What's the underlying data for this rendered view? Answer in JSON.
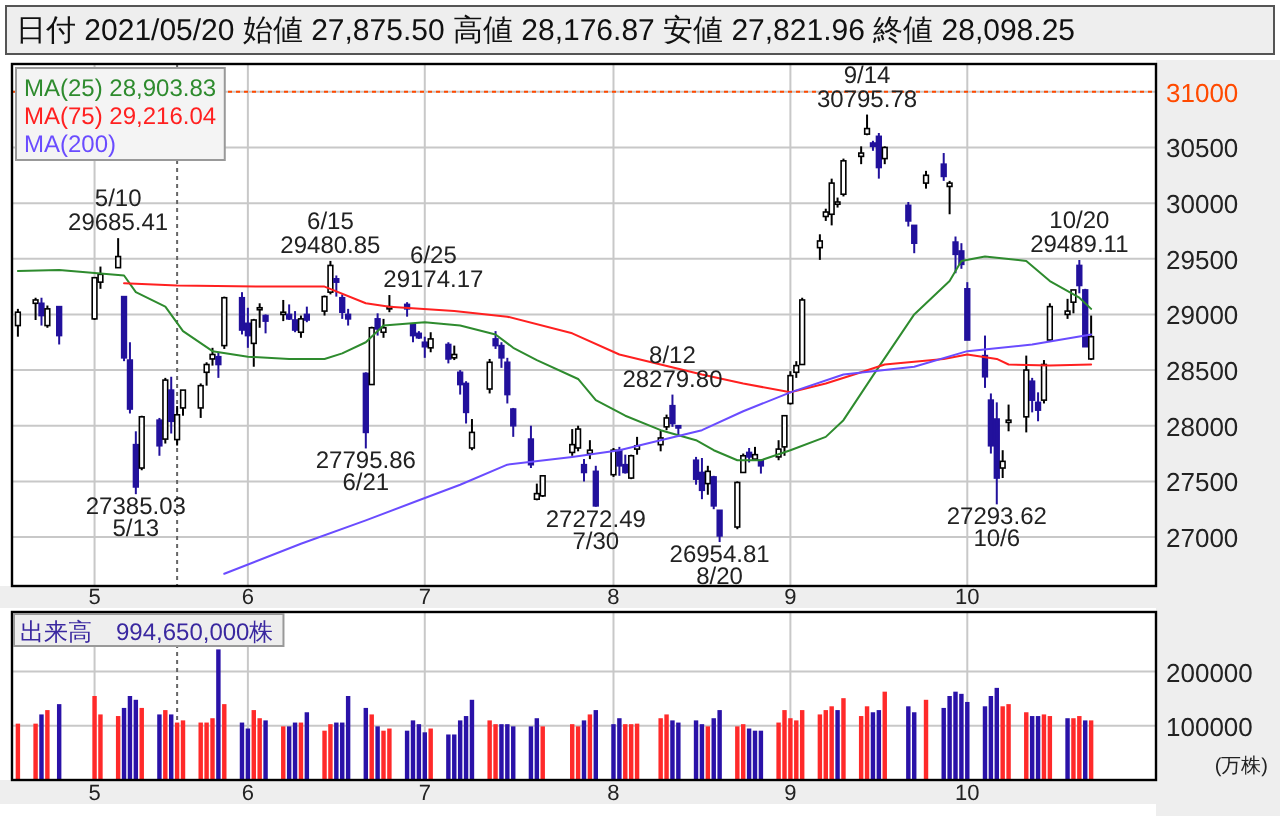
{
  "chart_data": [
    {
      "type": "candlestick",
      "title": "日付 2021/05/20 始値 27,875.50 高値 28,176.87 安値 27,821.96 終値 28,098.25",
      "x": [
        "2021-04-23",
        "2021-04-26",
        "2021-04-27",
        "2021-04-28",
        "2021-04-30",
        "2021-05-06",
        "2021-05-07",
        "2021-05-10",
        "2021-05-11",
        "2021-05-12",
        "2021-05-13",
        "2021-05-14",
        "2021-05-17",
        "2021-05-18",
        "2021-05-19",
        "2021-05-20",
        "2021-05-21",
        "2021-05-24",
        "2021-05-25",
        "2021-05-26",
        "2021-05-27",
        "2021-05-28",
        "2021-05-31",
        "2021-06-01",
        "2021-06-02",
        "2021-06-03",
        "2021-06-04",
        "2021-06-07",
        "2021-06-08",
        "2021-06-09",
        "2021-06-10",
        "2021-06-11",
        "2021-06-14",
        "2021-06-15",
        "2021-06-16",
        "2021-06-17",
        "2021-06-18",
        "2021-06-21",
        "2021-06-22",
        "2021-06-23",
        "2021-06-24",
        "2021-06-25",
        "2021-06-28",
        "2021-06-29",
        "2021-06-30",
        "2021-07-01",
        "2021-07-02",
        "2021-07-05",
        "2021-07-06",
        "2021-07-07",
        "2021-07-08",
        "2021-07-09",
        "2021-07-12",
        "2021-07-13",
        "2021-07-14",
        "2021-07-15",
        "2021-07-16",
        "2021-07-19",
        "2021-07-20",
        "2021-07-21",
        "2021-07-26",
        "2021-07-27",
        "2021-07-28",
        "2021-07-29",
        "2021-07-30",
        "2021-08-02",
        "2021-08-03",
        "2021-08-04",
        "2021-08-05",
        "2021-08-06",
        "2021-08-10",
        "2021-08-11",
        "2021-08-12",
        "2021-08-13",
        "2021-08-16",
        "2021-08-17",
        "2021-08-18",
        "2021-08-19",
        "2021-08-20",
        "2021-08-23",
        "2021-08-24",
        "2021-08-25",
        "2021-08-26",
        "2021-08-27",
        "2021-08-30",
        "2021-08-31",
        "2021-09-01",
        "2021-09-02",
        "2021-09-03",
        "2021-09-06",
        "2021-09-07",
        "2021-09-08",
        "2021-09-09",
        "2021-09-10",
        "2021-09-13",
        "2021-09-14",
        "2021-09-15",
        "2021-09-16",
        "2021-09-17",
        "2021-09-21",
        "2021-09-22",
        "2021-09-24",
        "2021-09-27",
        "2021-09-28",
        "2021-09-29",
        "2021-09-30",
        "2021-10-01",
        "2021-10-04",
        "2021-10-05",
        "2021-10-06",
        "2021-10-07",
        "2021-10-08",
        "2021-10-11",
        "2021-10-12",
        "2021-10-13",
        "2021-10-14",
        "2021-10-15",
        "2021-10-18",
        "2021-10-19",
        "2021-10-20",
        "2021-10-21",
        "2021-10-22"
      ],
      "ohlc": [
        [
          28900,
          29050,
          28800,
          29020
        ],
        [
          29100,
          29150,
          28950,
          29130
        ],
        [
          29100,
          29150,
          28900,
          28990
        ],
        [
          28900,
          29080,
          28880,
          29050
        ],
        [
          29070,
          29070,
          28730,
          28810
        ],
        [
          28960,
          29330,
          28950,
          29330
        ],
        [
          29290,
          29430,
          29230,
          29360
        ],
        [
          29420,
          29685.41,
          29420,
          29520
        ],
        [
          29160,
          29160,
          28580,
          28610
        ],
        [
          28590,
          28750,
          28110,
          28150
        ],
        [
          27830,
          27950,
          27385.03,
          27450
        ],
        [
          27620,
          28090,
          27600,
          28080
        ],
        [
          28050,
          28070,
          27730,
          27820
        ],
        [
          27880,
          28430,
          27840,
          28410
        ],
        [
          28320,
          28440,
          27930,
          28040
        ],
        [
          27875.5,
          28176.87,
          27821.96,
          28098.25
        ],
        [
          28160,
          28320,
          28090,
          28320
        ],
        [
          28160,
          28380,
          28070,
          28360
        ],
        [
          28480,
          28570,
          28360,
          28550
        ],
        [
          28600,
          28700,
          28540,
          28640
        ],
        [
          28620,
          28660,
          28430,
          28550
        ],
        [
          28720,
          29160,
          28690,
          29150
        ],
        [
          29150,
          29200,
          28820,
          28860
        ],
        [
          28920,
          29060,
          28700,
          28810
        ],
        [
          28740,
          28960,
          28530,
          28950
        ],
        [
          29050,
          29100,
          28880,
          29060
        ],
        [
          28990,
          29000,
          28830,
          28940
        ],
        [
          29000,
          29130,
          28940,
          29020
        ],
        [
          29000,
          29090,
          28950,
          28960
        ],
        [
          28950,
          29030,
          28840,
          28860
        ],
        [
          28840,
          28990,
          28790,
          28960
        ],
        [
          29000,
          29070,
          28930,
          28950
        ],
        [
          29030,
          29170,
          28990,
          29160
        ],
        [
          29200,
          29480.85,
          29180,
          29440
        ],
        [
          29320,
          29350,
          29160,
          29290
        ],
        [
          29150,
          29180,
          28960,
          29020
        ],
        [
          29000,
          29050,
          28900,
          28960
        ],
        [
          28470,
          28480,
          27795.86,
          27940
        ],
        [
          28370,
          28890,
          28370,
          28880
        ],
        [
          28960,
          29010,
          28810,
          28870
        ],
        [
          28840,
          28960,
          28790,
          28880
        ],
        [
          29050,
          29174.17,
          29020,
          29070
        ],
        [
          29090,
          29110,
          28980,
          29050
        ],
        [
          28910,
          28920,
          28750,
          28810
        ],
        [
          28830,
          28850,
          28780,
          28790
        ],
        [
          28750,
          28800,
          28610,
          28710
        ],
        [
          28700,
          28840,
          28660,
          28780
        ],
        [
          28730,
          28750,
          28560,
          28600
        ],
        [
          28610,
          28720,
          28590,
          28640
        ],
        [
          28480,
          28500,
          28280,
          28370
        ],
        [
          28380,
          28400,
          28020,
          28120
        ],
        [
          27800,
          28060,
          27780,
          27940
        ],
        [
          28330,
          28600,
          28290,
          28570
        ],
        [
          28780,
          28850,
          28690,
          28720
        ],
        [
          28720,
          28750,
          28520,
          28610
        ],
        [
          28570,
          28610,
          28200,
          28280
        ],
        [
          28150,
          28160,
          27900,
          28000
        ],
        [
          27880,
          28000,
          27620,
          27650
        ],
        [
          27340,
          27480,
          27330,
          27390
        ],
        [
          27370,
          27550,
          27360,
          27550
        ],
        [
          27760,
          27970,
          27730,
          27830
        ],
        [
          27800,
          28000,
          27770,
          27970
        ],
        [
          27650,
          27700,
          27500,
          27580
        ],
        [
          27750,
          27870,
          27700,
          27780
        ],
        [
          27590,
          27640,
          27272.49,
          27280
        ],
        [
          27560,
          27800,
          27540,
          27780
        ],
        [
          27780,
          27810,
          27550,
          27640
        ],
        [
          27650,
          27740,
          27570,
          27580
        ],
        [
          27530,
          27740,
          27520,
          27730
        ],
        [
          27790,
          27900,
          27740,
          27820
        ],
        [
          27830,
          27960,
          27770,
          27890
        ],
        [
          27990,
          28100,
          27960,
          28070
        ],
        [
          28180,
          28279.8,
          27990,
          28020
        ],
        [
          28000,
          28000,
          27900,
          27980
        ],
        [
          27690,
          27720,
          27470,
          27520
        ],
        [
          27580,
          27710,
          27340,
          27420
        ],
        [
          27480,
          27640,
          27380,
          27590
        ],
        [
          27540,
          27550,
          27250,
          27280
        ],
        [
          27240,
          27240,
          26954.81,
          27010
        ],
        [
          27090,
          27500,
          27070,
          27490
        ],
        [
          27580,
          27750,
          27580,
          27730
        ],
        [
          27760,
          27800,
          27670,
          27720
        ],
        [
          27700,
          27810,
          27690,
          27740
        ],
        [
          27690,
          27690,
          27570,
          27640
        ],
        [
          27720,
          27870,
          27690,
          27790
        ],
        [
          27810,
          28090,
          27730,
          28090
        ],
        [
          28200,
          28490,
          28190,
          28450
        ],
        [
          28480,
          28580,
          28430,
          28540
        ],
        [
          28550,
          29150,
          28550,
          29130
        ],
        [
          29600,
          29720,
          29490,
          29660
        ],
        [
          29880,
          29950,
          29840,
          29920
        ],
        [
          29900,
          30220,
          29800,
          30180
        ],
        [
          29990,
          30050,
          29960,
          30010
        ],
        [
          30080,
          30400,
          30060,
          30380
        ],
        [
          30420,
          30510,
          30350,
          30450
        ],
        [
          30620,
          30795.78,
          30610,
          30670
        ],
        [
          30540,
          30560,
          30470,
          30510
        ],
        [
          30600,
          30630,
          30220,
          30320
        ],
        [
          30400,
          30510,
          30350,
          30500
        ],
        [
          29980,
          30010,
          29790,
          29840
        ],
        [
          29800,
          29800,
          29550,
          29640
        ],
        [
          30180,
          30290,
          30130,
          30250
        ],
        [
          30350,
          30450,
          30200,
          30240
        ],
        [
          30150,
          30200,
          29900,
          30180
        ],
        [
          29650,
          29700,
          29370,
          29540
        ],
        [
          29570,
          29640,
          29410,
          29450
        ],
        [
          29230,
          29290,
          28770,
          28770
        ],
        [
          28630,
          28810,
          28340,
          28440
        ],
        [
          28230,
          28290,
          27750,
          27820
        ],
        [
          28060,
          28210,
          27293.62,
          27530
        ],
        [
          27620,
          27780,
          27530,
          27680
        ],
        [
          28030,
          28190,
          27950,
          28050
        ],
        [
          28080,
          28630,
          27940,
          28500
        ],
        [
          28400,
          28430,
          28120,
          28230
        ],
        [
          28210,
          28300,
          28040,
          28140
        ],
        [
          28230,
          28590,
          28200,
          28550
        ],
        [
          28770,
          29100,
          28760,
          29070
        ],
        [
          29000,
          29140,
          28960,
          29030
        ],
        [
          29110,
          29220,
          29010,
          29220
        ],
        [
          29440,
          29489.11,
          29190,
          29260
        ],
        [
          29220,
          29230,
          28710,
          28710
        ],
        [
          28600,
          28990,
          28590,
          28800
        ]
      ],
      "series": [
        {
          "name": "MA(25)   28,903.83",
          "type": "line",
          "color": "#2e8b2e",
          "x": [
            "2021-04-23",
            "2021-04-30",
            "2021-05-11",
            "2021-05-13",
            "2021-05-18",
            "2021-05-21",
            "2021-05-26",
            "2021-06-01",
            "2021-06-08",
            "2021-06-14",
            "2021-06-17",
            "2021-06-21",
            "2021-06-24",
            "2021-07-01",
            "2021-07-07",
            "2021-07-13",
            "2021-07-16",
            "2021-07-20",
            "2021-07-27",
            "2021-07-30",
            "2021-08-04",
            "2021-08-10",
            "2021-08-16",
            "2021-08-19",
            "2021-08-23",
            "2021-08-27",
            "2021-09-01",
            "2021-09-07",
            "2021-09-10",
            "2021-09-15",
            "2021-09-22",
            "2021-09-28",
            "2021-09-30",
            "2021-10-04",
            "2021-10-06",
            "2021-10-11",
            "2021-10-15",
            "2021-10-20",
            "2021-10-22"
          ],
          "values": [
            29390,
            29400,
            29350,
            29200,
            29070,
            28850,
            28670,
            28620,
            28600,
            28600,
            28650,
            28750,
            28900,
            28930,
            28900,
            28820,
            28700,
            28590,
            28420,
            28230,
            28090,
            27960,
            27870,
            27780,
            27690,
            27690,
            27780,
            27900,
            28050,
            28450,
            29000,
            29300,
            29480,
            29520,
            29510,
            29480,
            29300,
            29150,
            29050
          ]
        },
        {
          "name": "MA(75)   29,216.04",
          "type": "line",
          "color": "#ff2020",
          "x": [
            "2021-05-11",
            "2021-05-20",
            "2021-06-03",
            "2021-06-14",
            "2021-06-21",
            "2021-06-25",
            "2021-07-06",
            "2021-07-15",
            "2021-07-26",
            "2021-08-03",
            "2021-08-10",
            "2021-08-17",
            "2021-08-24",
            "2021-09-01",
            "2021-09-07",
            "2021-09-13",
            "2021-09-17",
            "2021-09-27",
            "2021-10-01",
            "2021-10-06",
            "2021-10-08",
            "2021-10-15",
            "2021-10-22"
          ],
          "values": [
            29280,
            29260,
            29250,
            29250,
            29100,
            29070,
            29030,
            28980,
            28830,
            28640,
            28550,
            28460,
            28380,
            28300,
            28380,
            28480,
            28550,
            28600,
            28640,
            28600,
            28550,
            28540,
            28550
          ]
        },
        {
          "name": "MA(200)",
          "type": "line",
          "color": "#6a4cff",
          "x": [
            "2021-05-28",
            "2021-06-10",
            "2021-06-21",
            "2021-06-30",
            "2021-07-07",
            "2021-07-15",
            "2021-07-26",
            "2021-08-03",
            "2021-08-10",
            "2021-08-17",
            "2021-08-24",
            "2021-09-01",
            "2021-09-10",
            "2021-09-22",
            "2021-10-01",
            "2021-10-12",
            "2021-10-22"
          ],
          "values": [
            26670,
            26940,
            27150,
            27330,
            27470,
            27650,
            27720,
            27780,
            27870,
            27960,
            28130,
            28300,
            28460,
            28530,
            28670,
            28730,
            28820
          ]
        }
      ],
      "xlim": [
        "2021-04-22",
        "2021-11-02"
      ],
      "ylim": [
        26560,
        31250
      ],
      "yticks": [
        27000,
        27500,
        28000,
        28500,
        29000,
        29500,
        30000,
        30500,
        31000
      ],
      "xticks": [
        {
          "value": "2021-05-06",
          "label": "5"
        },
        {
          "value": "2021-06-01",
          "label": "6"
        },
        {
          "value": "2021-07-01",
          "label": "7"
        },
        {
          "value": "2021-08-02",
          "label": "8"
        },
        {
          "value": "2021-09-01",
          "label": "9"
        },
        {
          "value": "2021-10-01",
          "label": "10"
        }
      ],
      "grid": true,
      "legend": "top left",
      "ref_lines": [
        {
          "axis": "y",
          "value": 31000,
          "line_style": "dotted",
          "color": "#ff4a00"
        },
        {
          "axis": "x",
          "value": "2021-05-20",
          "line_style": "dotted",
          "color": "#666666"
        }
      ],
      "annotations": [
        {
          "text": "29685.41",
          "x": "2021-05-10",
          "y": 29685.41
        },
        {
          "text": "5/10",
          "x": "2021-05-10",
          "y": 29685.41
        },
        {
          "text": "27385.03",
          "x": "2021-05-13",
          "y": 27385.03
        },
        {
          "text": "5/13",
          "x": "2021-05-13",
          "y": 27385.03
        },
        {
          "text": "29480.85",
          "x": "2021-06-15",
          "y": 29480.85
        },
        {
          "text": "6/15",
          "x": "2021-06-15",
          "y": 29480.85
        },
        {
          "text": "27795.86",
          "x": "2021-06-21",
          "y": 27795.86
        },
        {
          "text": "6/21",
          "x": "2021-06-21",
          "y": 27795.86
        },
        {
          "text": "29174.17",
          "x": "2021-06-25",
          "y": 29174.17
        },
        {
          "text": "6/25",
          "x": "2021-06-25",
          "y": 29174.17
        },
        {
          "text": "27272.49",
          "x": "2021-07-30",
          "y": 27272.49
        },
        {
          "text": "7/30",
          "x": "2021-07-30",
          "y": 27272.49
        },
        {
          "text": "28279.80",
          "x": "2021-08-12",
          "y": 28279.8
        },
        {
          "text": "8/12",
          "x": "2021-08-12",
          "y": 28279.8
        },
        {
          "text": "26954.81",
          "x": "2021-08-20",
          "y": 26954.81
        },
        {
          "text": "8/20",
          "x": "2021-08-20",
          "y": 26954.81
        },
        {
          "text": "30795.78",
          "x": "2021-09-14",
          "y": 30795.78
        },
        {
          "text": "9/14",
          "x": "2021-09-14",
          "y": 30795.78
        },
        {
          "text": "27293.62",
          "x": "2021-10-06",
          "y": 27293.62
        },
        {
          "text": "10/6",
          "x": "2021-10-06",
          "y": 27293.62
        },
        {
          "text": "29489.11",
          "x": "2021-10-20",
          "y": 29489.11
        },
        {
          "text": "10/20",
          "x": "2021-10-20",
          "y": 29489.11
        }
      ]
    },
    {
      "type": "bar",
      "title": "出来高　994,650,000株",
      "ylabel": "(万株)",
      "x": [
        "2021-04-23",
        "2021-04-26",
        "2021-04-27",
        "2021-04-28",
        "2021-04-30",
        "2021-05-06",
        "2021-05-07",
        "2021-05-10",
        "2021-05-11",
        "2021-05-12",
        "2021-05-13",
        "2021-05-14",
        "2021-05-17",
        "2021-05-18",
        "2021-05-19",
        "2021-05-20",
        "2021-05-21",
        "2021-05-24",
        "2021-05-25",
        "2021-05-26",
        "2021-05-27",
        "2021-05-28",
        "2021-05-31",
        "2021-06-01",
        "2021-06-02",
        "2021-06-03",
        "2021-06-04",
        "2021-06-07",
        "2021-06-08",
        "2021-06-09",
        "2021-06-10",
        "2021-06-11",
        "2021-06-14",
        "2021-06-15",
        "2021-06-16",
        "2021-06-17",
        "2021-06-18",
        "2021-06-21",
        "2021-06-22",
        "2021-06-23",
        "2021-06-24",
        "2021-06-25",
        "2021-06-28",
        "2021-06-29",
        "2021-06-30",
        "2021-07-01",
        "2021-07-02",
        "2021-07-05",
        "2021-07-06",
        "2021-07-07",
        "2021-07-08",
        "2021-07-09",
        "2021-07-12",
        "2021-07-13",
        "2021-07-14",
        "2021-07-15",
        "2021-07-16",
        "2021-07-19",
        "2021-07-20",
        "2021-07-21",
        "2021-07-26",
        "2021-07-27",
        "2021-07-28",
        "2021-07-29",
        "2021-07-30",
        "2021-08-02",
        "2021-08-03",
        "2021-08-04",
        "2021-08-05",
        "2021-08-06",
        "2021-08-10",
        "2021-08-11",
        "2021-08-12",
        "2021-08-13",
        "2021-08-16",
        "2021-08-17",
        "2021-08-18",
        "2021-08-19",
        "2021-08-20",
        "2021-08-23",
        "2021-08-24",
        "2021-08-25",
        "2021-08-26",
        "2021-08-27",
        "2021-08-30",
        "2021-08-31",
        "2021-09-01",
        "2021-09-02",
        "2021-09-03",
        "2021-09-06",
        "2021-09-07",
        "2021-09-08",
        "2021-09-09",
        "2021-09-10",
        "2021-09-13",
        "2021-09-14",
        "2021-09-15",
        "2021-09-16",
        "2021-09-17",
        "2021-09-21",
        "2021-09-22",
        "2021-09-24",
        "2021-09-27",
        "2021-09-28",
        "2021-09-29",
        "2021-09-30",
        "2021-10-01",
        "2021-10-04",
        "2021-10-05",
        "2021-10-06",
        "2021-10-07",
        "2021-10-08",
        "2021-10-11",
        "2021-10-12",
        "2021-10-13",
        "2021-10-14",
        "2021-10-15",
        "2021-10-18",
        "2021-10-19",
        "2021-10-20",
        "2021-10-21",
        "2021-10-22"
      ],
      "values": [
        104000,
        104000,
        121000,
        129000,
        140000,
        155000,
        121000,
        118000,
        133000,
        155000,
        148000,
        133000,
        121000,
        129000,
        121000,
        106000,
        110000,
        106000,
        106000,
        114000,
        241000,
        140000,
        106000,
        95000,
        129000,
        114000,
        110000,
        99000,
        99000,
        106000,
        106000,
        125000,
        91000,
        103000,
        106000,
        106000,
        155000,
        133000,
        121000,
        99000,
        91000,
        95000,
        91000,
        110000,
        103000,
        88000,
        95000,
        84000,
        84000,
        110000,
        118000,
        148000,
        110000,
        103000,
        103000,
        103000,
        99000,
        99000,
        114000,
        99000,
        103000,
        99000,
        110000,
        121000,
        129000,
        103000,
        114000,
        103000,
        103000,
        104000,
        114000,
        121000,
        110000,
        106000,
        110000,
        103000,
        99000,
        114000,
        129000,
        99000,
        103000,
        95000,
        91000,
        91000,
        106000,
        129000,
        114000,
        110000,
        129000,
        121000,
        129000,
        136000,
        129000,
        151000,
        118000,
        136000,
        125000,
        129000,
        163000,
        136000,
        125000,
        148000,
        133000,
        155000,
        163000,
        159000,
        144000,
        136000,
        155000,
        170000,
        136000,
        140000,
        125000,
        118000,
        118000,
        121000,
        118000,
        114000,
        114000,
        118000,
        110000,
        110000
      ],
      "colors": [
        "#ff2a2a",
        "#ff2a2a",
        "#2a12a8",
        "#ff2a2a",
        "#2a12a8",
        "#ff2a2a",
        "#ff2a2a",
        "#ff2a2a",
        "#2a12a8",
        "#2a12a8",
        "#2a12a8",
        "#ff2a2a",
        "#2a12a8",
        "#ff2a2a",
        "#2a12a8",
        "#ff2a2a",
        "#ff2a2a",
        "#ff2a2a",
        "#ff2a2a",
        "#ff2a2a",
        "#2a12a8",
        "#ff2a2a",
        "#2a12a8",
        "#2a12a8",
        "#ff2a2a",
        "#ff2a2a",
        "#2a12a8",
        "#ff2a2a",
        "#2a12a8",
        "#2a12a8",
        "#ff2a2a",
        "#2a12a8",
        "#ff2a2a",
        "#ff2a2a",
        "#2a12a8",
        "#2a12a8",
        "#2a12a8",
        "#2a12a8",
        "#ff2a2a",
        "#2a12a8",
        "#ff2a2a",
        "#ff2a2a",
        "#2a12a8",
        "#2a12a8",
        "#2a12a8",
        "#2a12a8",
        "#ff2a2a",
        "#2a12a8",
        "#2a12a8",
        "#2a12a8",
        "#2a12a8",
        "#2a12a8",
        "#ff2a2a",
        "#ff2a2a",
        "#2a12a8",
        "#2a12a8",
        "#2a12a8",
        "#2a12a8",
        "#2a12a8",
        "#ff2a2a",
        "#ff2a2a",
        "#ff2a2a",
        "#2a12a8",
        "#ff2a2a",
        "#2a12a8",
        "#2a12a8",
        "#2a12a8",
        "#ff2a2a",
        "#ff2a2a",
        "#ff2a2a",
        "#ff2a2a",
        "#ff2a2a",
        "#2a12a8",
        "#2a12a8",
        "#2a12a8",
        "#2a12a8",
        "#ff2a2a",
        "#2a12a8",
        "#2a12a8",
        "#ff2a2a",
        "#ff2a2a",
        "#2a12a8",
        "#2a12a8",
        "#2a12a8",
        "#ff2a2a",
        "#ff2a2a",
        "#ff2a2a",
        "#ff2a2a",
        "#ff2a2a",
        "#ff2a2a",
        "#ff2a2a",
        "#ff2a2a",
        "#2a12a8",
        "#ff2a2a",
        "#ff2a2a",
        "#ff2a2a",
        "#2a12a8",
        "#2a12a8",
        "#ff2a2a",
        "#2a12a8",
        "#2a12a8",
        "#ff2a2a",
        "#2a12a8",
        "#2a12a8",
        "#2a12a8",
        "#2a12a8",
        "#2a12a8",
        "#2a12a8",
        "#2a12a8",
        "#2a12a8",
        "#ff2a2a",
        "#ff2a2a",
        "#ff2a2a",
        "#2a12a8",
        "#2a12a8",
        "#ff2a2a",
        "#ff2a2a",
        "#2a12a8",
        "#ff2a2a",
        "#ff2a2a",
        "#2a12a8",
        "#ff2a2a"
      ],
      "xlim": [
        "2021-04-22",
        "2021-11-02"
      ],
      "ylim": [
        0,
        310000
      ],
      "yticks": [
        100000,
        200000
      ],
      "xticks": [
        {
          "value": "2021-05-06",
          "label": "5"
        },
        {
          "value": "2021-06-01",
          "label": "6"
        },
        {
          "value": "2021-07-01",
          "label": "7"
        },
        {
          "value": "2021-08-02",
          "label": "8"
        },
        {
          "value": "2021-09-01",
          "label": "9"
        },
        {
          "value": "2021-10-01",
          "label": "10"
        }
      ],
      "grid": true,
      "ref_lines": [
        {
          "axis": "x",
          "value": "2021-05-20",
          "line_style": "dotted",
          "color": "#666666"
        }
      ]
    }
  ]
}
